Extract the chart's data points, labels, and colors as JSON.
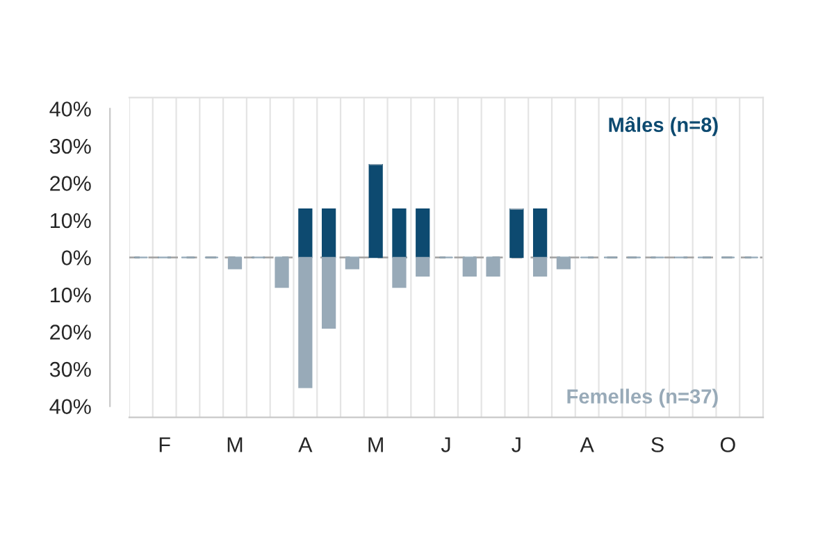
{
  "chart_data": {
    "type": "bar",
    "stacked": true,
    "categories": [
      null,
      "F",
      null,
      null,
      "M",
      null,
      null,
      "A",
      null,
      null,
      "M",
      null,
      null,
      "J",
      null,
      null,
      "J",
      null,
      null,
      "A",
      null,
      null,
      "S",
      null,
      null,
      "O",
      null
    ],
    "series": [
      {
        "name": "Mâles (n=8)",
        "color": "#0d4a70",
        "values": [
          0,
          0,
          0,
          0,
          0,
          0,
          0,
          13,
          13,
          0,
          25,
          13,
          13,
          0,
          0,
          0,
          13,
          13,
          0,
          0,
          0,
          0,
          0,
          0,
          0,
          0,
          0
        ]
      },
      {
        "name": "Femelles (n=37)",
        "color": "#98aab8",
        "values": [
          0,
          0,
          0,
          0,
          -3,
          0,
          -8,
          -35,
          -19,
          -3,
          0,
          -8,
          -5,
          0,
          -5,
          -5,
          0,
          -5,
          -3,
          0,
          0,
          0,
          0,
          0,
          0,
          0,
          0
        ]
      }
    ],
    "ylim": [
      -43,
      43
    ],
    "yticks": [
      {
        "value": -40,
        "label": "40%"
      },
      {
        "value": -30,
        "label": "30%"
      },
      {
        "value": -20,
        "label": "20%"
      },
      {
        "value": -10,
        "label": "10%"
      },
      {
        "value": 0,
        "label": "0%"
      },
      {
        "value": 10,
        "label": "10%"
      },
      {
        "value": 20,
        "label": "20%"
      },
      {
        "value": 30,
        "label": "30%"
      },
      {
        "value": 40,
        "label": "40%"
      }
    ],
    "ref_lines": [
      {
        "axis": "y",
        "value": 0,
        "color": "#a0a0a0",
        "line_style": "dashed"
      }
    ],
    "grid": "x",
    "legend": false
  }
}
